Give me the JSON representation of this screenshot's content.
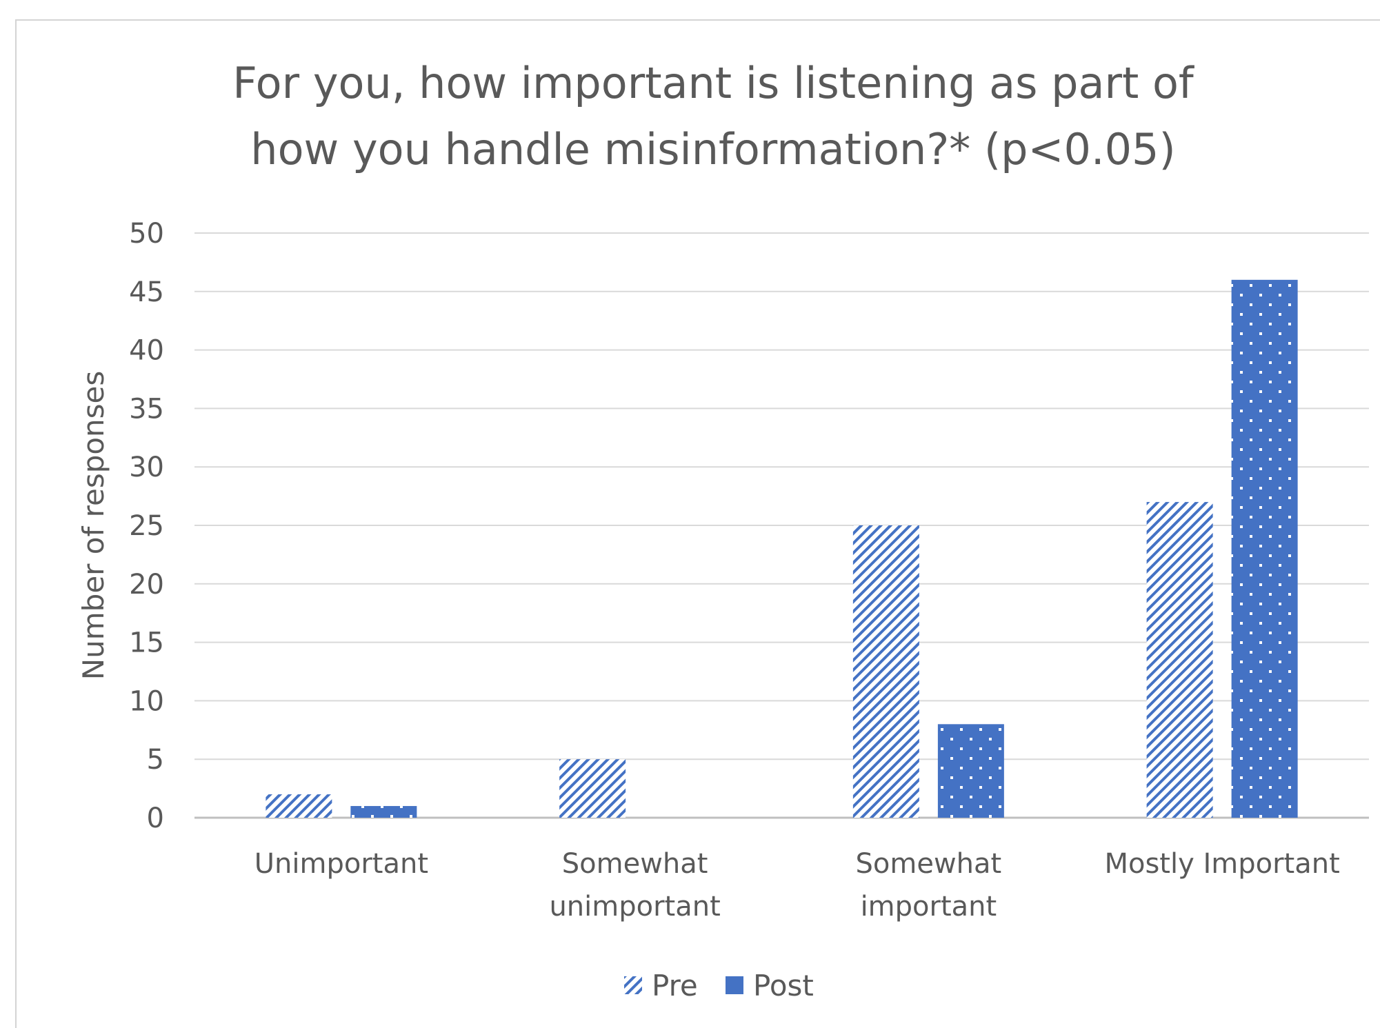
{
  "chart_data": {
    "type": "bar",
    "title_lines": [
      "For you, how important is listening as part of",
      "how you handle misinformation?* (p<0.05)"
    ],
    "ylabel": "Number of responses",
    "xlabel": "",
    "ylim": [
      0,
      50
    ],
    "yticks": [
      0,
      5,
      10,
      15,
      20,
      25,
      30,
      35,
      40,
      45,
      50
    ],
    "grid": true,
    "legend_position": "bottom",
    "categories": [
      [
        "Unimportant"
      ],
      [
        "Somewhat",
        "unimportant"
      ],
      [
        "Somewhat",
        "important"
      ],
      [
        "Mostly Important"
      ]
    ],
    "series": [
      {
        "name": "Pre",
        "values": [
          2,
          5,
          25,
          27
        ],
        "color": "#4472c4",
        "pattern": "diagonal-stripes"
      },
      {
        "name": "Post",
        "values": [
          1,
          0,
          8,
          46
        ],
        "color": "#4472c4",
        "pattern": "dots"
      }
    ]
  }
}
